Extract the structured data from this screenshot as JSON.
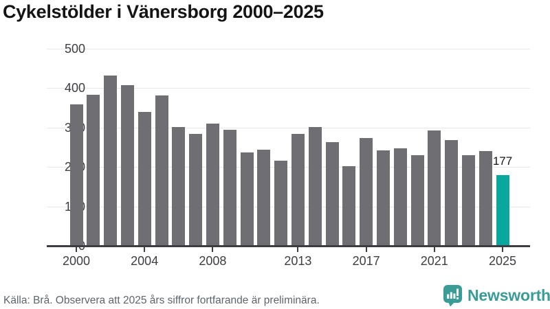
{
  "page": {
    "title": "Cykelstölder i Vänersborg 2000–2025"
  },
  "footer": {
    "source_note": "Källa: Brå. Observera att 2025 års siffror fortfarande är preliminära.",
    "brand_name": "Newsworthy"
  },
  "colors": {
    "bar": "#6e6e73",
    "highlight": "#0aa79e",
    "axis": "#3c3c41",
    "grid": "#e8e8e8",
    "brand": "#3a9c96",
    "note_text": "#5d656b",
    "title_text": "#141414"
  },
  "chart_data": {
    "type": "bar",
    "title": "Cykelstölder i Vänersborg 2000–2025",
    "categories": [
      2000,
      2001,
      2002,
      2003,
      2004,
      2005,
      2006,
      2007,
      2008,
      2009,
      2010,
      2011,
      2012,
      2013,
      2014,
      2015,
      2016,
      2017,
      2018,
      2019,
      2020,
      2021,
      2022,
      2023,
      2024,
      2025
    ],
    "values": [
      357,
      381,
      430,
      406,
      338,
      380,
      299,
      283,
      308,
      293,
      235,
      242,
      214,
      283,
      299,
      261,
      201,
      271,
      241,
      246,
      228,
      291,
      267,
      228,
      239,
      177
    ],
    "highlight_index": 25,
    "highlight_value_label": "177",
    "xlabel": "",
    "ylabel": "",
    "x_tick_labels": [
      "2000",
      "2004",
      "2008",
      "2013",
      "2017",
      "2021",
      "2025"
    ],
    "y_ticks": [
      0,
      100,
      200,
      300,
      400,
      500
    ],
    "ylim": [
      0,
      500
    ],
    "grid": "horizontal",
    "legend": "none"
  }
}
